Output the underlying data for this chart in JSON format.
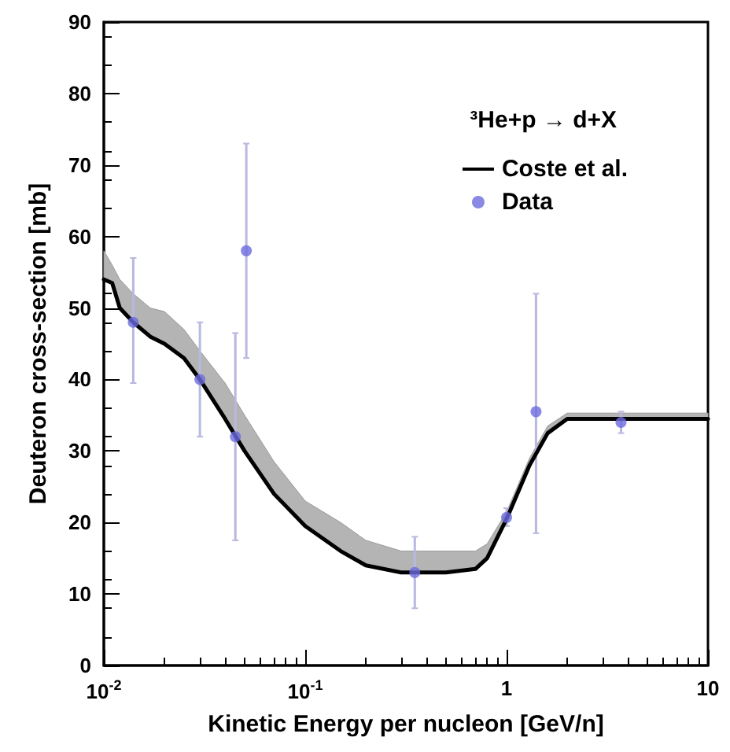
{
  "chart_data": {
    "type": "line",
    "xlabel": "Kinetic Energy per nucleon [GeV/n]",
    "ylabel": "Deuteron cross-section [mb]",
    "legend_title": "³He+p → d+X",
    "log": "x",
    "xlim": [
      0.01,
      10
    ],
    "xticks": [
      {
        "value": 0.01,
        "label": "10$^{-2}$"
      },
      {
        "value": 0.1,
        "label": "10$^{-1}$"
      },
      1,
      10
    ],
    "ylim": [
      0,
      90
    ],
    "yticks": [
      0,
      10,
      20,
      30,
      40,
      50,
      60,
      70,
      80,
      90
    ],
    "grid": false,
    "legend": "top right",
    "series": [
      {
        "name": "Coste et al.",
        "color": "#000000",
        "line_style": "solid",
        "x": [
          0.01,
          0.011,
          0.012,
          0.014,
          0.017,
          0.02,
          0.025,
          0.03,
          0.04,
          0.05,
          0.07,
          0.1,
          0.15,
          0.2,
          0.3,
          0.5,
          0.7,
          0.8,
          1.0,
          1.3,
          1.6,
          2,
          3,
          10
        ],
        "values": [
          54,
          53.5,
          50,
          48,
          46,
          45,
          43,
          40,
          34.5,
          30,
          24,
          19.5,
          16,
          14,
          13,
          13,
          13.5,
          15,
          20.5,
          28,
          32.5,
          34.5,
          34.5,
          34.5
        ],
        "lower": [
          54,
          53.5,
          50,
          48,
          46,
          45,
          43,
          40,
          34.5,
          30,
          24,
          19.5,
          16,
          14,
          13,
          13,
          13.5,
          15,
          20.5,
          28,
          32.5,
          34.5,
          34.5,
          34.5
        ],
        "upper": [
          58,
          56,
          54,
          52,
          50,
          49.5,
          47,
          44,
          39.5,
          35,
          28.5,
          23,
          20,
          17.5,
          16,
          16,
          16,
          17,
          21.5,
          29,
          33.5,
          35.3,
          35.3,
          35.3
        ]
      },
      {
        "name": "Data",
        "type": "scatter",
        "color": "#6b6bdf",
        "marker": "circle",
        "x": [
          0.014,
          0.03,
          0.045,
          0.051,
          0.35,
          1.0,
          1.4,
          3.7
        ],
        "values": [
          48,
          40,
          32,
          58,
          13,
          20.7,
          35.5,
          34
        ],
        "errors": [
          [
            39.5,
            57
          ],
          [
            32,
            48
          ],
          [
            17.5,
            46.5
          ],
          [
            43,
            73
          ],
          [
            8,
            18
          ],
          [
            19.5,
            22
          ],
          [
            18.5,
            52
          ],
          [
            32.5,
            35.5
          ]
        ]
      }
    ]
  }
}
